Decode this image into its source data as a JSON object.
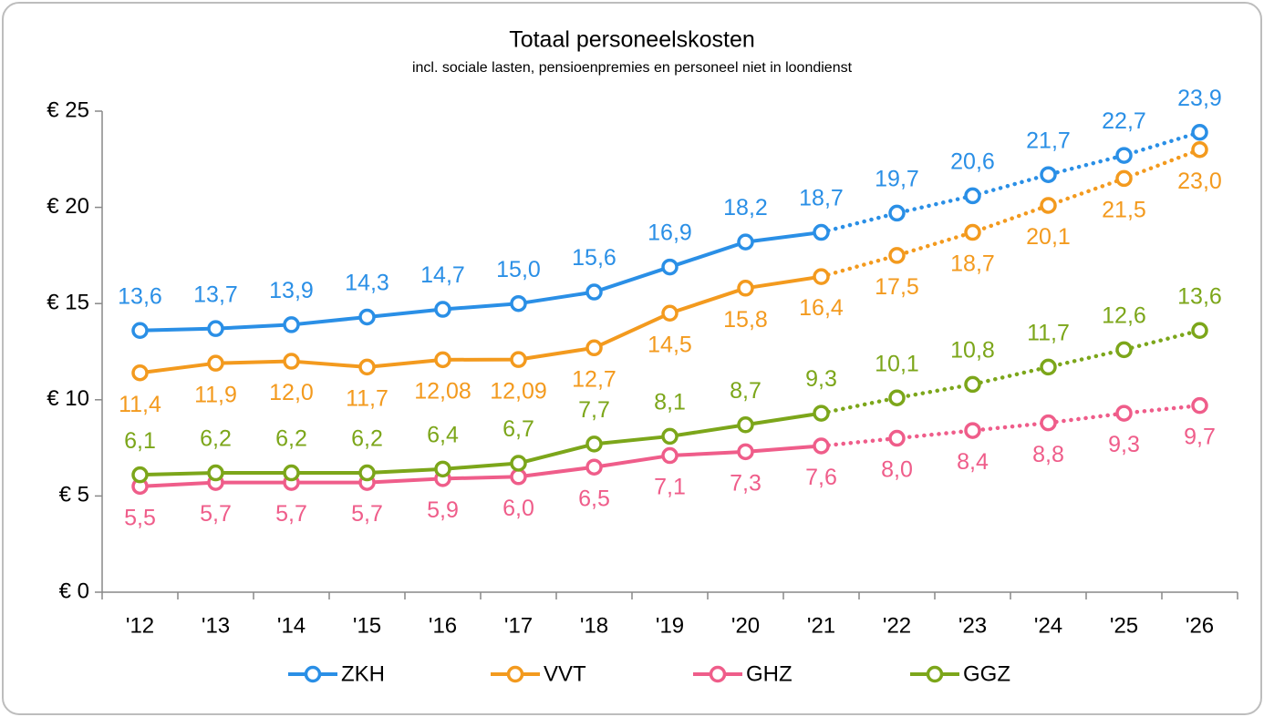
{
  "chart_data": {
    "type": "line",
    "title": "Totaal personeelskosten",
    "subtitle": "incl. sociale lasten, pensioenpremies en personeel niet in loondienst",
    "categories": [
      "'12",
      "'13",
      "'14",
      "'15",
      "'16",
      "'17",
      "'18",
      "'19",
      "'20",
      "'21",
      "'22",
      "'23",
      "'24",
      "'25",
      "'26"
    ],
    "dotted_from_index": 9,
    "ylim": [
      0,
      25
    ],
    "yticks": [
      {
        "value": 0,
        "label": "€ 0"
      },
      {
        "value": 5,
        "label": "€ 5"
      },
      {
        "value": 10,
        "label": "€ 10"
      },
      {
        "value": 15,
        "label": "€ 15"
      },
      {
        "value": 20,
        "label": "€ 20"
      },
      {
        "value": 25,
        "label": "€ 25"
      }
    ],
    "grid": false,
    "legend": "bottom",
    "series": [
      {
        "name": "ZKH",
        "color": "#2a8fe6",
        "label_position": "above",
        "values": [
          13.6,
          13.7,
          13.9,
          14.3,
          14.7,
          15.0,
          15.6,
          16.9,
          18.2,
          18.7,
          19.7,
          20.6,
          21.7,
          22.7,
          23.9
        ],
        "value_labels": [
          "13,6",
          "13,7",
          "13,9",
          "14,3",
          "14,7",
          "15,0",
          "15,6",
          "16,9",
          "18,2",
          "18,7",
          "19,7",
          "20,6",
          "21,7",
          "22,7",
          "23,9"
        ]
      },
      {
        "name": "VVT",
        "color": "#f39a1e",
        "label_position": "below",
        "values": [
          11.4,
          11.9,
          12.0,
          11.7,
          12.08,
          12.09,
          12.7,
          14.5,
          15.8,
          16.4,
          17.5,
          18.7,
          20.1,
          21.5,
          23.0
        ],
        "value_labels": [
          "11,4",
          "11,9",
          "12,0",
          "11,7",
          "12,08",
          "12,09",
          "12,7",
          "14,5",
          "15,8",
          "16,4",
          "17,5",
          "18,7",
          "20,1",
          "21,5",
          "23,0"
        ]
      },
      {
        "name": "GHZ",
        "color": "#ef5d8a",
        "label_position": "below",
        "values": [
          5.5,
          5.7,
          5.7,
          5.7,
          5.9,
          6.0,
          6.5,
          7.1,
          7.3,
          7.6,
          8.0,
          8.4,
          8.8,
          9.3,
          9.7
        ],
        "value_labels": [
          "5,5",
          "5,7",
          "5,7",
          "5,7",
          "5,9",
          "6,0",
          "6,5",
          "7,1",
          "7,3",
          "7,6",
          "8,0",
          "8,4",
          "8,8",
          "9,3",
          "9,7"
        ]
      },
      {
        "name": "GGZ",
        "color": "#7ca61a",
        "label_position": "above",
        "values": [
          6.1,
          6.2,
          6.2,
          6.2,
          6.4,
          6.7,
          7.7,
          8.1,
          8.7,
          9.3,
          10.1,
          10.8,
          11.7,
          12.6,
          13.6
        ],
        "value_labels": [
          "6,1",
          "6,2",
          "6,2",
          "6,2",
          "6,4",
          "6,7",
          "7,7",
          "8,1",
          "8,7",
          "9,3",
          "10,1",
          "10,8",
          "11,7",
          "12,6",
          "13,6"
        ]
      }
    ]
  }
}
